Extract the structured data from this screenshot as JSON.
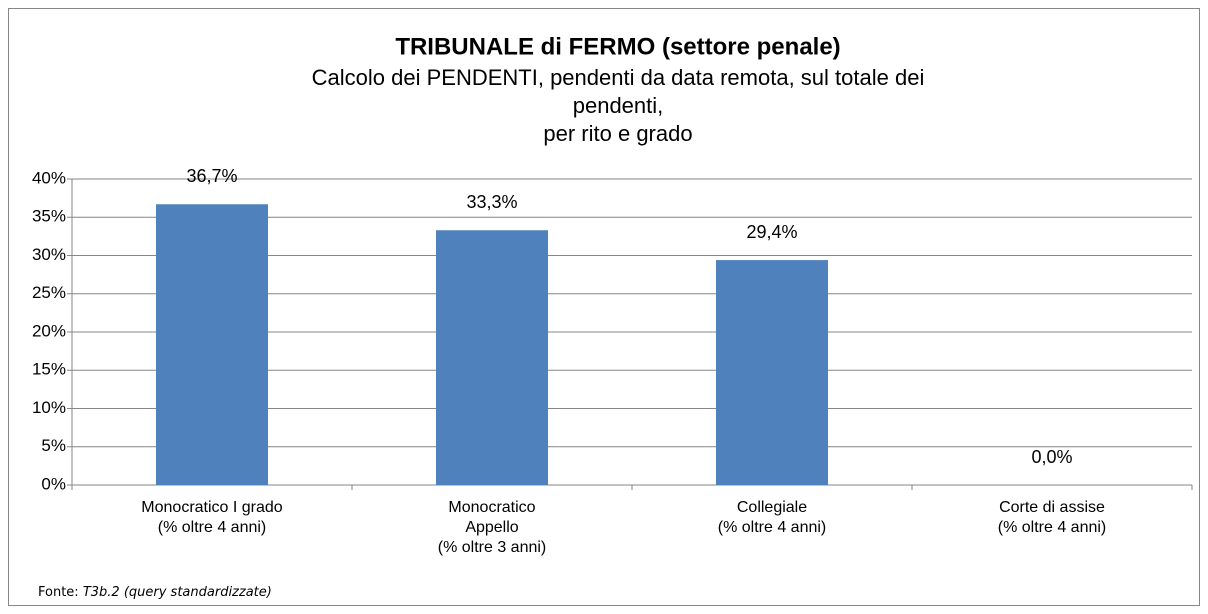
{
  "chart_data": {
    "type": "bar",
    "title": "TRIBUNALE di FERMO (settore penale)",
    "subtitle": "Calcolo dei PENDENTI, pendenti da data remota, sul totale dei\npendenti,\nper rito e grado",
    "categories": [
      "Monocratico I grado\n(% oltre 4 anni)",
      "Monocratico\nAppello\n(% oltre 3 anni)",
      "Collegiale\n(% oltre 4 anni)",
      "Corte di assise\n(% oltre 4 anni)"
    ],
    "values": [
      36.7,
      33.3,
      29.4,
      0
    ],
    "value_labels": [
      "36,7%",
      "33,3%",
      "29,4%",
      "0,0%"
    ],
    "color": "#4f81bd",
    "ylim": [
      0,
      40
    ],
    "yticks": [
      {
        "value": 0,
        "label": "0%"
      },
      {
        "value": 5,
        "label": "5%"
      },
      {
        "value": 10,
        "label": "10%"
      },
      {
        "value": 15,
        "label": "15%"
      },
      {
        "value": 20,
        "label": "20%"
      },
      {
        "value": 25,
        "label": "25%"
      },
      {
        "value": 30,
        "label": "30%"
      },
      {
        "value": 35,
        "label": "35%"
      },
      {
        "value": 40,
        "label": "40%"
      }
    ],
    "grid": true,
    "source": {
      "label": "Fonte:",
      "text": "T3b.2 (query standardizzate)"
    }
  }
}
